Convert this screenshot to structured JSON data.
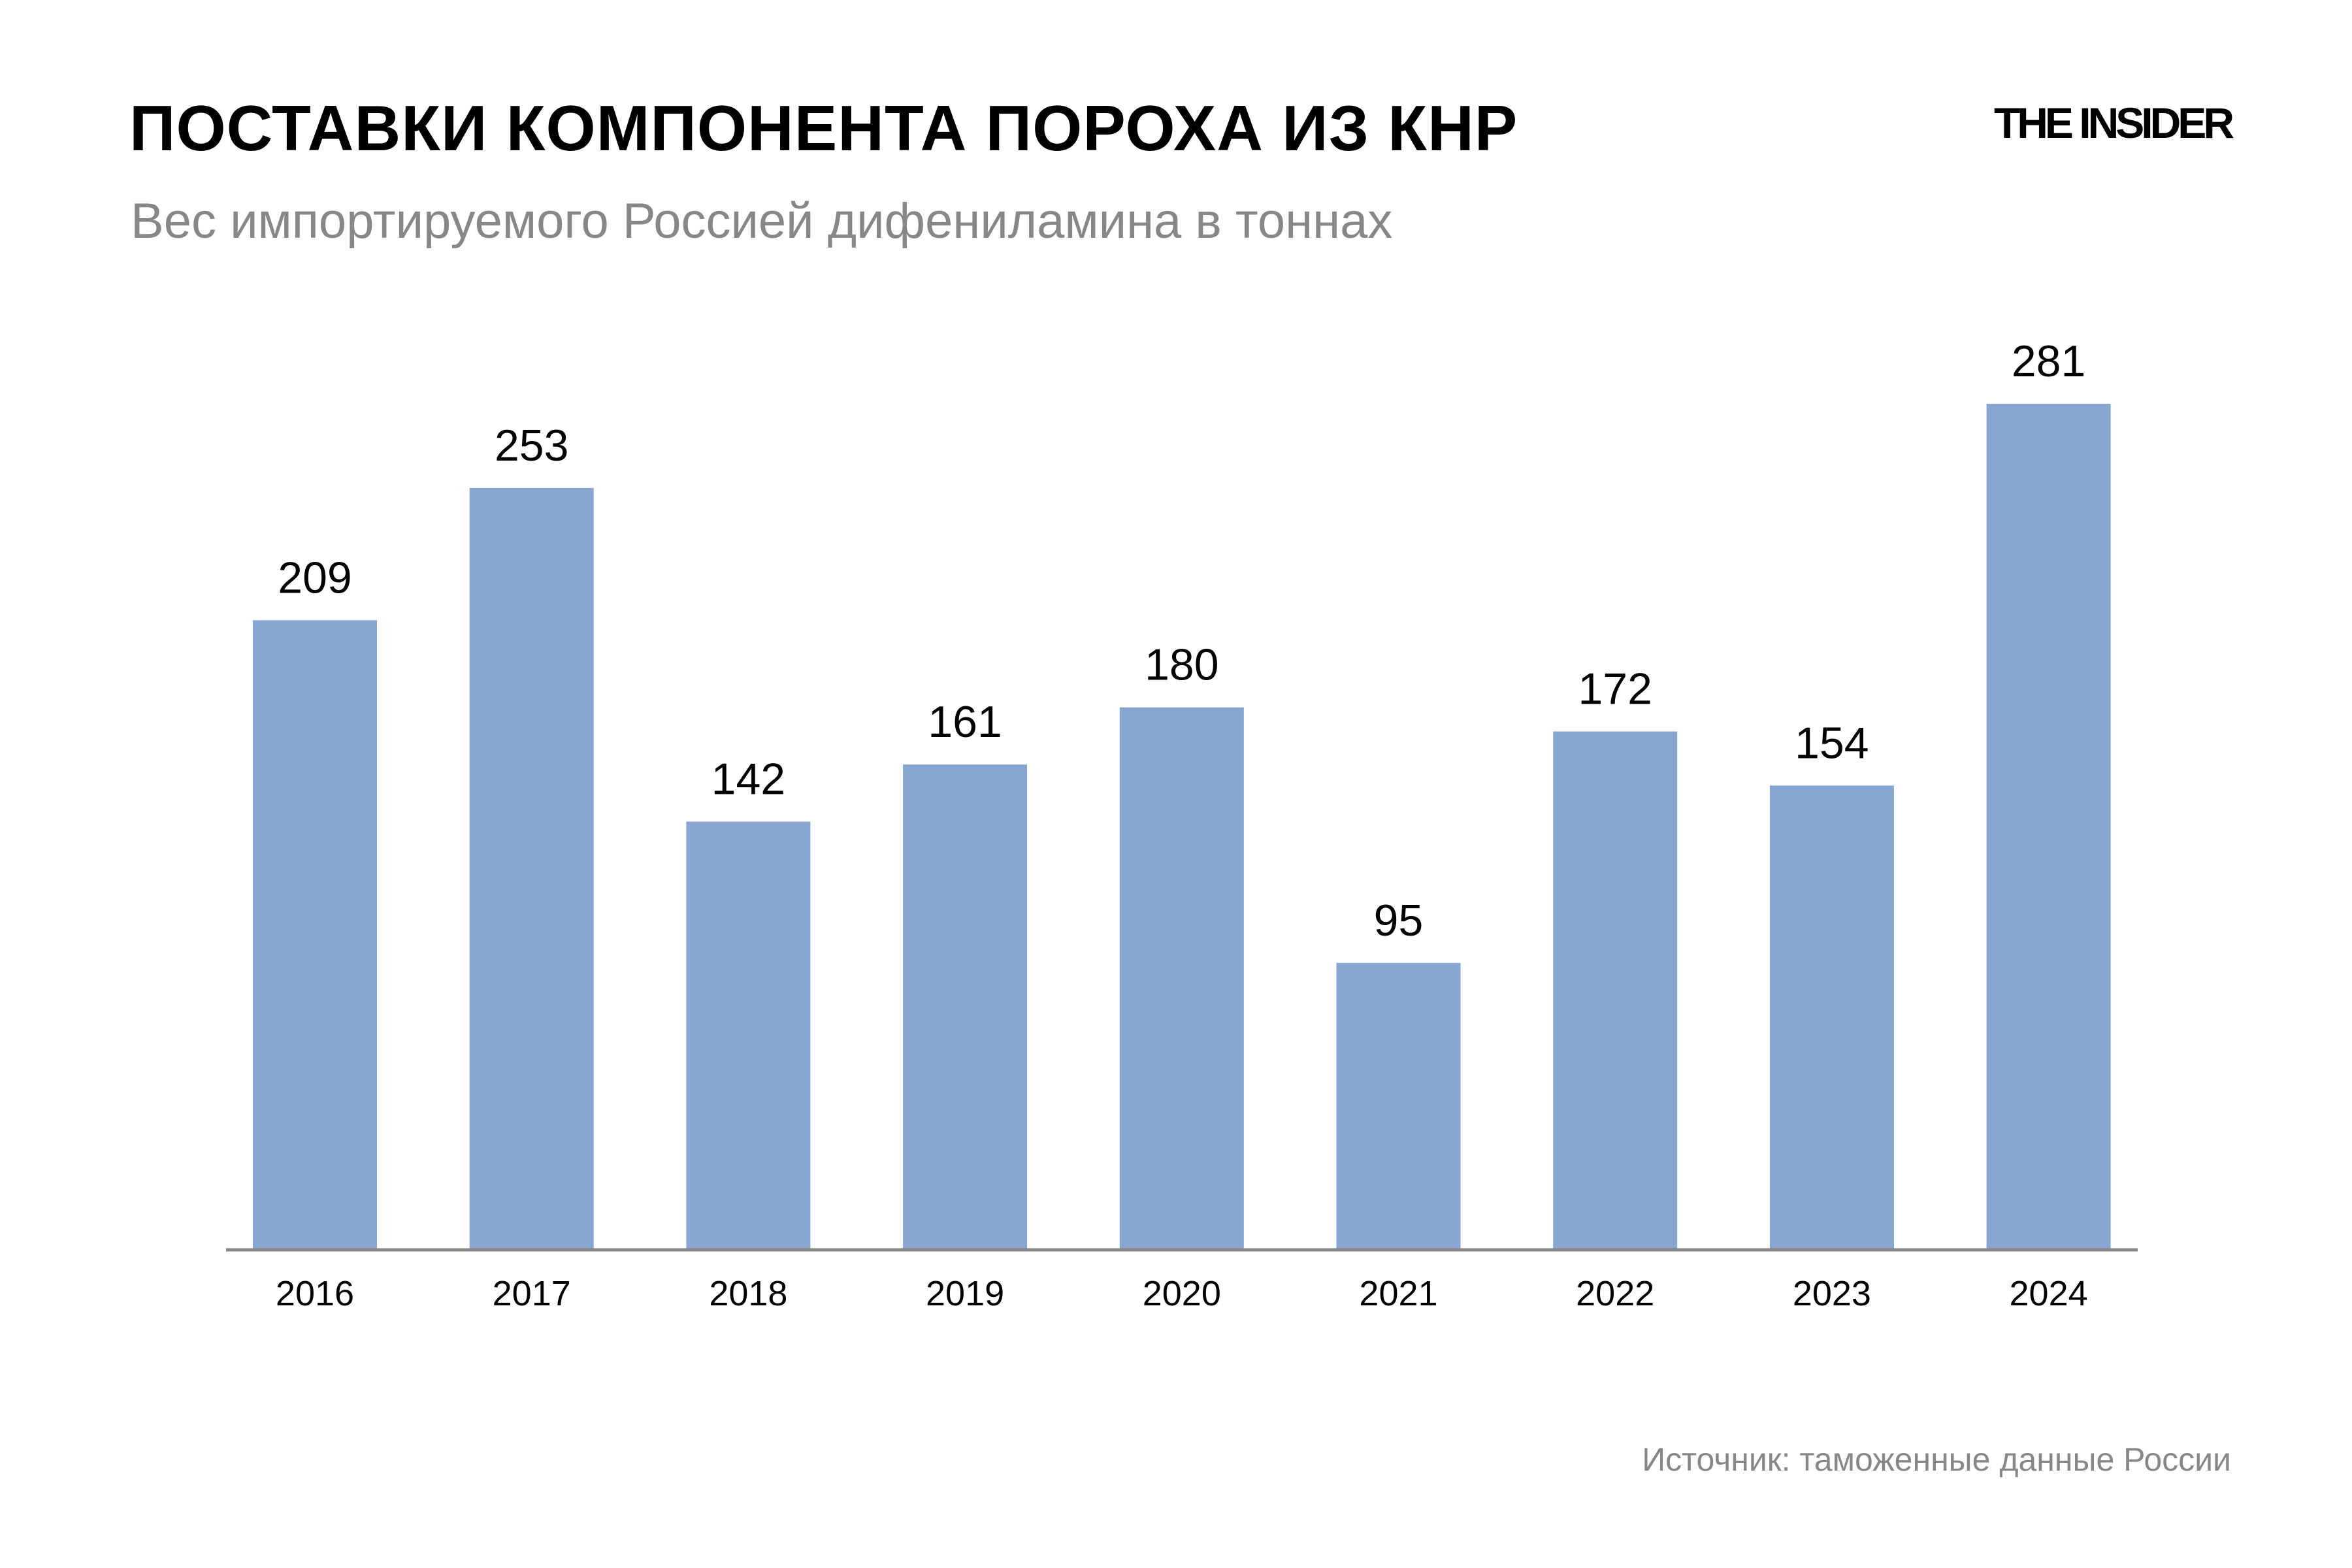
{
  "header": {
    "title": "ПОСТАВКИ КОМПОНЕНТА ПОРОХА ИЗ КНР",
    "subtitle": "Вес импортируемого Россией дифениламина в тоннах",
    "logo": "THE INSIDER"
  },
  "footer": {
    "source": "Источник: таможенные данные России"
  },
  "chart_data": {
    "type": "bar",
    "title": "ПОСТАВКИ КОМПОНЕНТА ПОРОХА ИЗ КНР",
    "subtitle": "Вес импортируемого Россией дифениламина в тоннах",
    "xlabel": "",
    "ylabel": "",
    "categories": [
      "2016",
      "2017",
      "2018",
      "2019",
      "2020",
      "2021",
      "2022",
      "2023",
      "2024"
    ],
    "values": [
      209,
      253,
      142,
      161,
      180,
      95,
      172,
      154,
      281
    ],
    "ylim": [
      0,
      281
    ],
    "grid": false,
    "data_labels": true,
    "colors": {
      "bar": "#87a6d1",
      "axis": "#878787"
    }
  }
}
